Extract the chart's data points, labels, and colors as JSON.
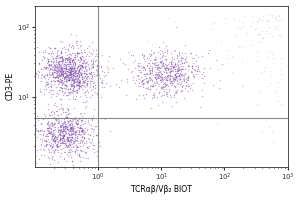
{
  "xlabel": "TCRαβ/Vβ₂ BIOT",
  "ylabel": "CD3-PE",
  "xmin": 0.1,
  "xmax": 1000,
  "ymin": 1.0,
  "ymax": 200,
  "gate_x": 1.0,
  "gate_y": 5.0,
  "dot_color": "#6B2A9A",
  "dot_alpha": 0.4,
  "dot_size": 1.0,
  "background_color": "#ffffff",
  "grid_color": "#888888",
  "tick_color": "#333333",
  "seed": 42,
  "n_cluster1_main": 1000,
  "n_cluster2_tcr": 600,
  "n_cluster3_low": 700,
  "n_noise": 100
}
